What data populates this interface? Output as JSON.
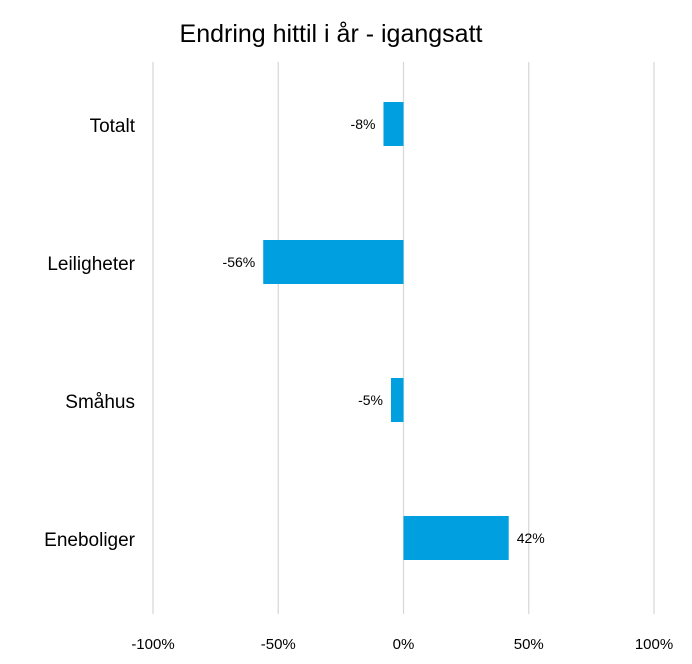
{
  "chart_data": {
    "type": "bar",
    "orientation": "horizontal",
    "title": "Endring hittil i år - igangsatt",
    "categories": [
      "Totalt",
      "Leiligheter",
      "Småhus",
      "Eneboliger"
    ],
    "values": [
      -8,
      -56,
      -5,
      42
    ],
    "labels": [
      "-8%",
      "-56%",
      "-5%",
      "42%"
    ],
    "xlim": [
      -100,
      100
    ],
    "ticks": [
      -100,
      -50,
      0,
      50,
      100
    ],
    "tick_labels": [
      "-100%",
      "-50%",
      "0%",
      "50%",
      "100%"
    ],
    "grid": true,
    "color": "#009FE0"
  }
}
